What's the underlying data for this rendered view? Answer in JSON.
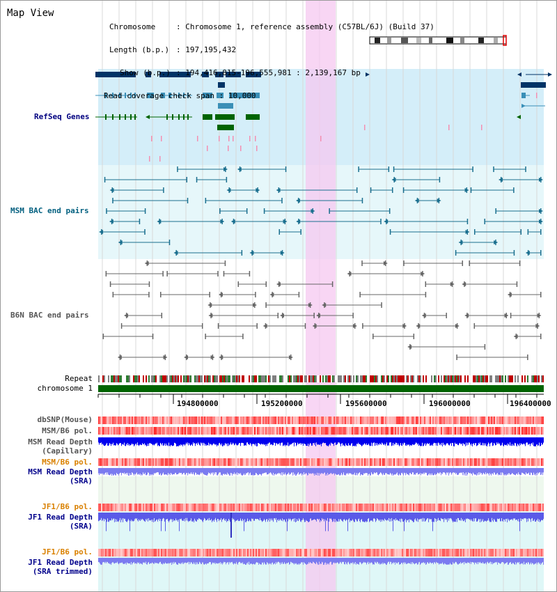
{
  "page": {
    "title": "Map View"
  },
  "info": {
    "chromosome_key": "Chromosome",
    "chromosome_val": ": Chromosome 1, reference assembly (C57BL/6J) (Build 37)",
    "length_key": "Length (b.p.)",
    "length_val": ": 197,195,432",
    "show_key": "Show (b.p.)",
    "show_val": ": 194,416,815-196,555,981 : 2,139,167 bp",
    "span_key": "Read coverage check span",
    "span_val": ": 10,000"
  },
  "tracks": {
    "refseq": "RefSeq Genes",
    "msm_bac": "MSM BAC end pairs",
    "b6n_bac": "B6N BAC end pairs",
    "repeat": "Repeat",
    "chromosome": "chromosome 1",
    "dbsnp": "dbSNP(Mouse)",
    "msm_pol": "MSM/B6 pol.",
    "msm_depth_line1": "MSM Read Depth",
    "msm_depth_line2": "(Capillary)",
    "msm_pol_sra": "MSM/B6 pol.",
    "msm_sra_line1": "MSM Read Depth",
    "msm_sra_line2": "(SRA)",
    "jf1_pol": "JF1/B6 pol.",
    "jf1_depth_line1": "JF1 Read Depth",
    "jf1_depth_line2": "(SRA)",
    "jf1_pol2": "JF1/B6 pol.",
    "jf1_trim_line1": "JF1 Read Depth",
    "jf1_trim_line2": "(SRA trimmed)"
  },
  "scale": {
    "ticks": [
      "194800000",
      "195200000",
      "195600000",
      "196000000",
      "196400000"
    ]
  },
  "colors": {
    "gene_dark": "#003366",
    "gene_mid": "#3a8fb7",
    "gene_green": "#006400",
    "highlight": "#f5c8f0",
    "depth_dark": "#0000ee",
    "depth_light": "#7b7bf0",
    "pol_red": "#e03030"
  }
}
